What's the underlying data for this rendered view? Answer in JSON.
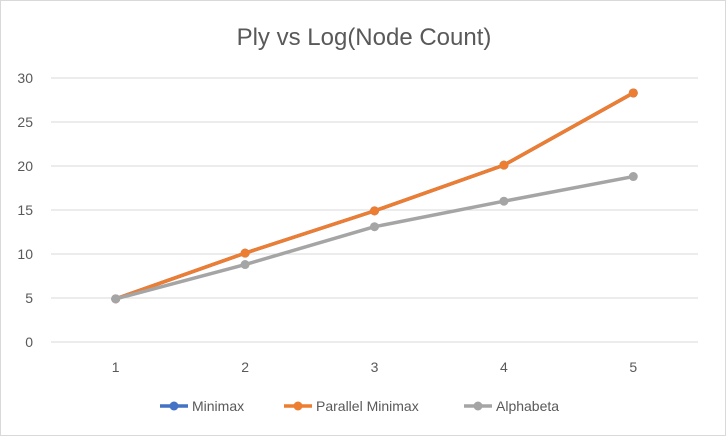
{
  "chart_data": {
    "type": "line",
    "title": "Ply vs Log(Node Count)",
    "xlabel": "",
    "ylabel": "",
    "x": [
      1,
      2,
      3,
      4,
      5
    ],
    "x_tick_labels": [
      "1",
      "2",
      "3",
      "4",
      "5"
    ],
    "ylim": [
      0,
      30
    ],
    "y_ticks": [
      0,
      5,
      10,
      15,
      20,
      25,
      30
    ],
    "y_tick_labels": [
      "0",
      "5",
      "10",
      "15",
      "20",
      "25",
      "30"
    ],
    "grid": true,
    "legend_position": "bottom",
    "series": [
      {
        "name": "Minimax",
        "color": "#4472c4",
        "values": [
          4.9,
          10.1,
          14.9,
          20.1,
          28.3
        ]
      },
      {
        "name": "Parallel Minimax",
        "color": "#ed7d31",
        "values": [
          4.9,
          10.1,
          14.9,
          20.1,
          28.3
        ]
      },
      {
        "name": "Alphabeta",
        "color": "#a5a5a5",
        "values": [
          4.9,
          8.8,
          13.1,
          16.0,
          18.8
        ]
      }
    ]
  }
}
